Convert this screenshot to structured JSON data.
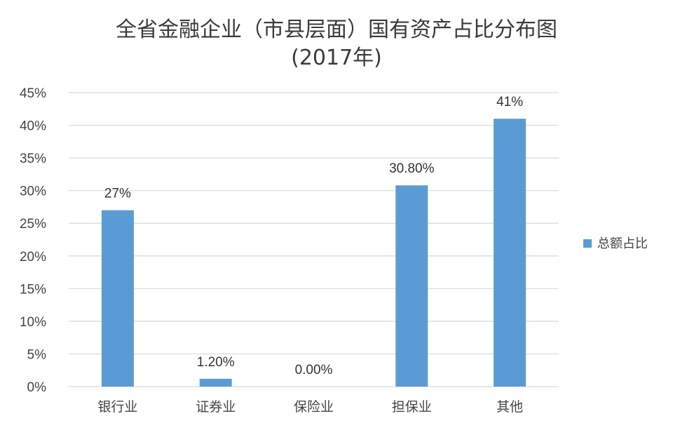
{
  "chart_data": {
    "type": "bar",
    "title_line1": "全省金融企业（市县层面）国有资产占比分布图",
    "title_line2": "(2017年)",
    "categories": [
      "银行业",
      "证券业",
      "保险业",
      "担保业",
      "其他"
    ],
    "series": [
      {
        "name": "总额占比",
        "values": [
          27,
          1.2,
          0,
          30.8,
          41
        ],
        "data_labels": [
          "27%",
          "1.20%",
          "0.00%",
          "30.80%",
          "41%"
        ],
        "color": "#5b9bd5"
      }
    ],
    "ylim": [
      0,
      45
    ],
    "yticks": [
      "0%",
      "5%",
      "10%",
      "15%",
      "20%",
      "25%",
      "30%",
      "35%",
      "40%",
      "45%"
    ],
    "ytick_values": [
      0,
      5,
      10,
      15,
      20,
      25,
      30,
      35,
      40,
      45
    ],
    "grid": true,
    "legend_position": "right",
    "gridline_color": "#d9d9d9"
  }
}
